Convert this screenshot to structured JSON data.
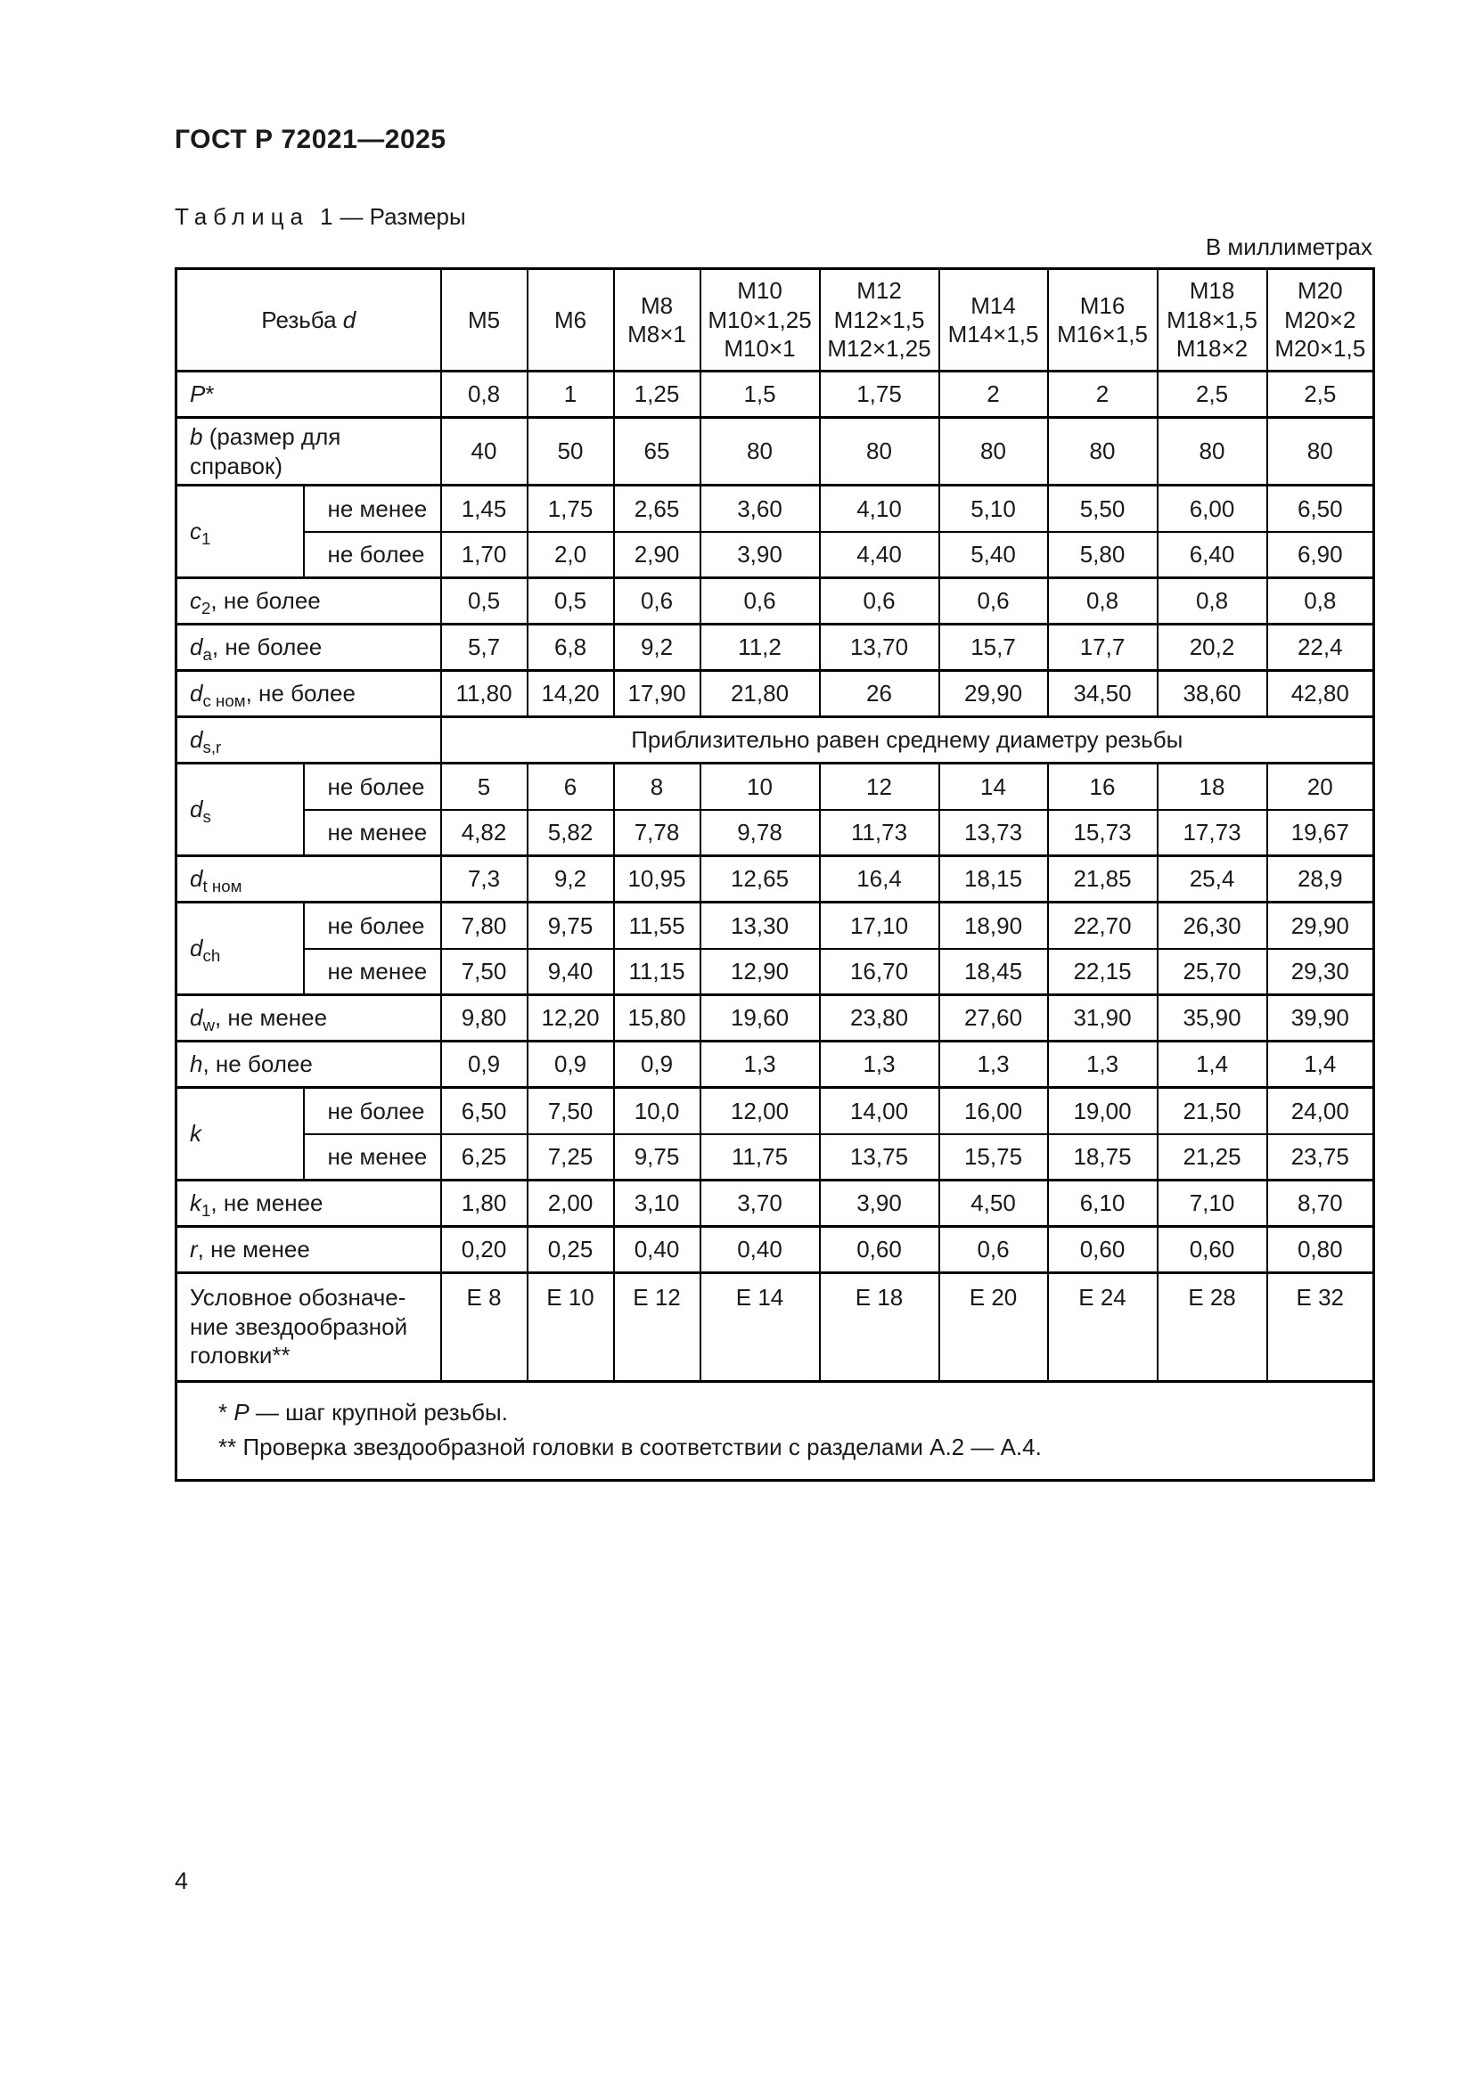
{
  "page": {
    "doc_code": "ГОСТ Р 72021—2025",
    "caption_word": "Таблица",
    "caption_number": "1",
    "caption_rest": "— Размеры",
    "units_note": "В миллиметрах",
    "page_number": "4"
  },
  "table": {
    "header": {
      "first_col": {
        "prefix": "Резьба ",
        "var": "d"
      },
      "columns": [
        {
          "lines": [
            "M5"
          ]
        },
        {
          "lines": [
            "M6"
          ]
        },
        {
          "lines": [
            "M8",
            "M8×1"
          ]
        },
        {
          "lines": [
            "M10",
            "M10×1,25",
            "M10×1"
          ]
        },
        {
          "lines": [
            "M12",
            "M12×1,5",
            "M12×1,25"
          ]
        },
        {
          "lines": [
            "M14",
            "M14×1,5"
          ]
        },
        {
          "lines": [
            "M16",
            "M16×1,5"
          ]
        },
        {
          "lines": [
            "M18",
            "M18×1,5",
            "M18×2"
          ]
        },
        {
          "lines": [
            "M20",
            "M20×2",
            "M20×1,5"
          ]
        }
      ]
    },
    "rows": [
      {
        "type": "simple",
        "label": {
          "var": "P",
          "suffix": "*"
        },
        "values": [
          "0,8",
          "1",
          "1,25",
          "1,5",
          "1,75",
          "2",
          "2",
          "2,5",
          "2,5"
        ]
      },
      {
        "type": "simple",
        "label": {
          "var": "b",
          "suffix": " (размер для справок)"
        },
        "values": [
          "40",
          "50",
          "65",
          "80",
          "80",
          "80",
          "80",
          "80",
          "80"
        ]
      },
      {
        "type": "group",
        "label": {
          "var": "c",
          "sub": "1"
        },
        "subrows": [
          {
            "qualifier": "не менее",
            "values": [
              "1,45",
              "1,75",
              "2,65",
              "3,60",
              "4,10",
              "5,10",
              "5,50",
              "6,00",
              "6,50"
            ]
          },
          {
            "qualifier": "не более",
            "values": [
              "1,70",
              "2,0",
              "2,90",
              "3,90",
              "4,40",
              "5,40",
              "5,80",
              "6,40",
              "6,90"
            ]
          }
        ]
      },
      {
        "type": "simple",
        "label": {
          "var": "c",
          "sub": "2",
          "suffix": ", не более"
        },
        "values": [
          "0,5",
          "0,5",
          "0,6",
          "0,6",
          "0,6",
          "0,6",
          "0,8",
          "0,8",
          "0,8"
        ]
      },
      {
        "type": "simple",
        "label": {
          "var": "d",
          "sub": "a",
          "suffix": ", не более"
        },
        "values": [
          "5,7",
          "6,8",
          "9,2",
          "11,2",
          "13,70",
          "15,7",
          "17,7",
          "20,2",
          "22,4"
        ]
      },
      {
        "type": "simple",
        "label": {
          "var": "d",
          "sub": "c ном",
          "suffix": ", не более"
        },
        "values": [
          "11,80",
          "14,20",
          "17,90",
          "21,80",
          "26",
          "29,90",
          "34,50",
          "38,60",
          "42,80"
        ]
      },
      {
        "type": "span",
        "label": {
          "var": "d",
          "sub": "s,r"
        },
        "span_text": "Приблизительно равен среднему диаметру резьбы"
      },
      {
        "type": "group",
        "label": {
          "var": "d",
          "sub": "s"
        },
        "subrows": [
          {
            "qualifier": "не более",
            "values": [
              "5",
              "6",
              "8",
              "10",
              "12",
              "14",
              "16",
              "18",
              "20"
            ]
          },
          {
            "qualifier": "не менее",
            "values": [
              "4,82",
              "5,82",
              "7,78",
              "9,78",
              "11,73",
              "13,73",
              "15,73",
              "17,73",
              "19,67"
            ]
          }
        ]
      },
      {
        "type": "simple",
        "label": {
          "var": "d",
          "sub": "t ном"
        },
        "values": [
          "7,3",
          "9,2",
          "10,95",
          "12,65",
          "16,4",
          "18,15",
          "21,85",
          "25,4",
          "28,9"
        ]
      },
      {
        "type": "group",
        "label": {
          "var": "d",
          "sub": "ch"
        },
        "subrows": [
          {
            "qualifier": "не более",
            "values": [
              "7,80",
              "9,75",
              "11,55",
              "13,30",
              "17,10",
              "18,90",
              "22,70",
              "26,30",
              "29,90"
            ]
          },
          {
            "qualifier": "не менее",
            "values": [
              "7,50",
              "9,40",
              "11,15",
              "12,90",
              "16,70",
              "18,45",
              "22,15",
              "25,70",
              "29,30"
            ]
          }
        ]
      },
      {
        "type": "simple",
        "label": {
          "var": "d",
          "sub": "w",
          "suffix": ", не менее"
        },
        "values": [
          "9,80",
          "12,20",
          "15,80",
          "19,60",
          "23,80",
          "27,60",
          "31,90",
          "35,90",
          "39,90"
        ]
      },
      {
        "type": "simple",
        "label": {
          "var": "h",
          "suffix": ", не более"
        },
        "values": [
          "0,9",
          "0,9",
          "0,9",
          "1,3",
          "1,3",
          "1,3",
          "1,3",
          "1,4",
          "1,4"
        ]
      },
      {
        "type": "group",
        "label": {
          "var": "k"
        },
        "subrows": [
          {
            "qualifier": "не более",
            "values": [
              "6,50",
              "7,50",
              "10,0",
              "12,00",
              "14,00",
              "16,00",
              "19,00",
              "21,50",
              "24,00"
            ]
          },
          {
            "qualifier": "не менее",
            "values": [
              "6,25",
              "7,25",
              "9,75",
              "11,75",
              "13,75",
              "15,75",
              "18,75",
              "21,25",
              "23,75"
            ]
          }
        ]
      },
      {
        "type": "simple",
        "label": {
          "var": "k",
          "sub": "1",
          "suffix": ", не менее"
        },
        "values": [
          "1,80",
          "2,00",
          "3,10",
          "3,70",
          "3,90",
          "4,50",
          "6,10",
          "7,10",
          "8,70"
        ]
      },
      {
        "type": "simple",
        "label": {
          "var": "r",
          "suffix": ", не менее"
        },
        "values": [
          "0,20",
          "0,25",
          "0,40",
          "0,40",
          "0,60",
          "0,6",
          "0,60",
          "0,60",
          "0,80"
        ]
      },
      {
        "type": "designation",
        "label_lines": [
          "Условное обозначе-",
          "ние звездообразной",
          "головки**"
        ],
        "values": [
          "Е 8",
          "Е 10",
          "Е 12",
          "Е 14",
          "Е 18",
          "Е 20",
          "Е 24",
          "Е 28",
          "Е 32"
        ]
      }
    ],
    "footnotes": [
      {
        "marker": "*",
        "var": "P",
        "text": " — шаг крупной резьбы."
      },
      {
        "marker": "**",
        "var": "",
        "text": "Проверка звездообразной головки в соответствии с разделами А.2 — А.4."
      }
    ]
  }
}
